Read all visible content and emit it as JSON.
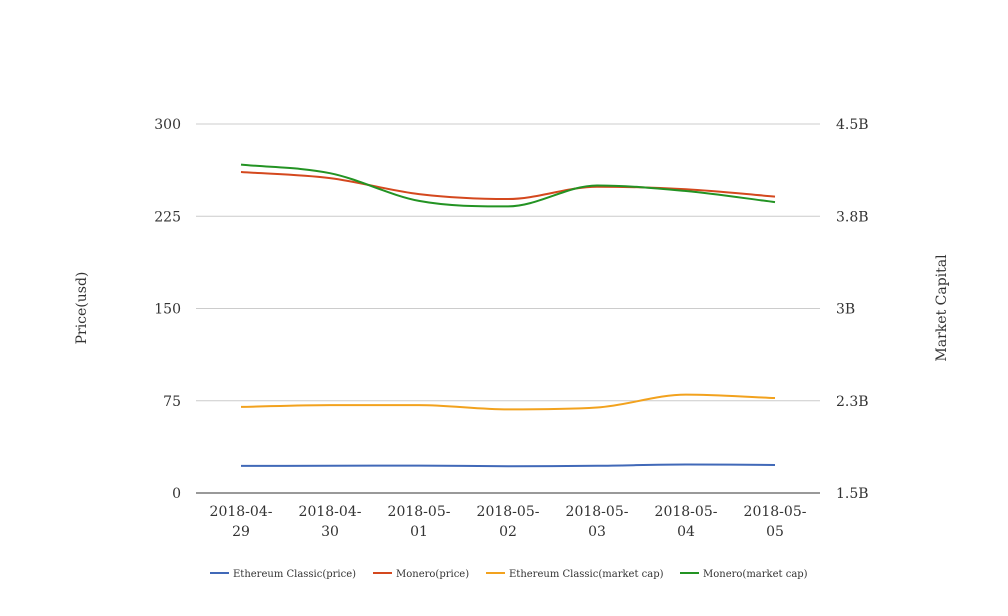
{
  "chart_data": {
    "type": "line",
    "categories": [
      "2018-04-29",
      "2018-04-30",
      "2018-05-01",
      "2018-05-02",
      "2018-05-03",
      "2018-05-04",
      "2018-05-05"
    ],
    "category_lines": [
      [
        "2018-04-",
        "29"
      ],
      [
        "2018-04-",
        "30"
      ],
      [
        "2018-05-",
        "01"
      ],
      [
        "2018-05-",
        "02"
      ],
      [
        "2018-05-",
        "03"
      ],
      [
        "2018-05-",
        "04"
      ],
      [
        "2018-05-",
        "05"
      ]
    ],
    "ylabel_left": "Price(usd)",
    "ylabel_right": "Market Capital",
    "y_left_ticks": [
      "300",
      "225",
      "150",
      "75",
      "0"
    ],
    "y_right_ticks": [
      "4.5B",
      "3.8B",
      "3B",
      "2.3B",
      "1.5B"
    ],
    "ylim_left": [
      0,
      300
    ],
    "ylim_right": [
      1500000000,
      4500000000
    ],
    "grid": true,
    "legend_position": "bottom",
    "series": [
      {
        "name": "Ethereum Classic(price)",
        "axis": "left",
        "color": "#4169b8",
        "values": [
          22,
          22.2,
          22.3,
          21.8,
          22.1,
          23.2,
          22.8
        ]
      },
      {
        "name": "Monero(price)",
        "axis": "left",
        "color": "#d4481e",
        "values": [
          261,
          256,
          243,
          239,
          249,
          247,
          241
        ]
      },
      {
        "name": "Ethereum Classic(market cap)",
        "axis": "right",
        "color": "#f2a21e",
        "values": [
          2200000000,
          2215000000,
          2215000000,
          2180000000,
          2195000000,
          2300000000,
          2272000000
        ]
      },
      {
        "name": "Monero(market cap)",
        "axis": "right",
        "color": "#239323",
        "values": [
          4170000000,
          4100000000,
          3875000000,
          3830000000,
          4000000000,
          3955000000,
          3865000000
        ]
      }
    ]
  }
}
